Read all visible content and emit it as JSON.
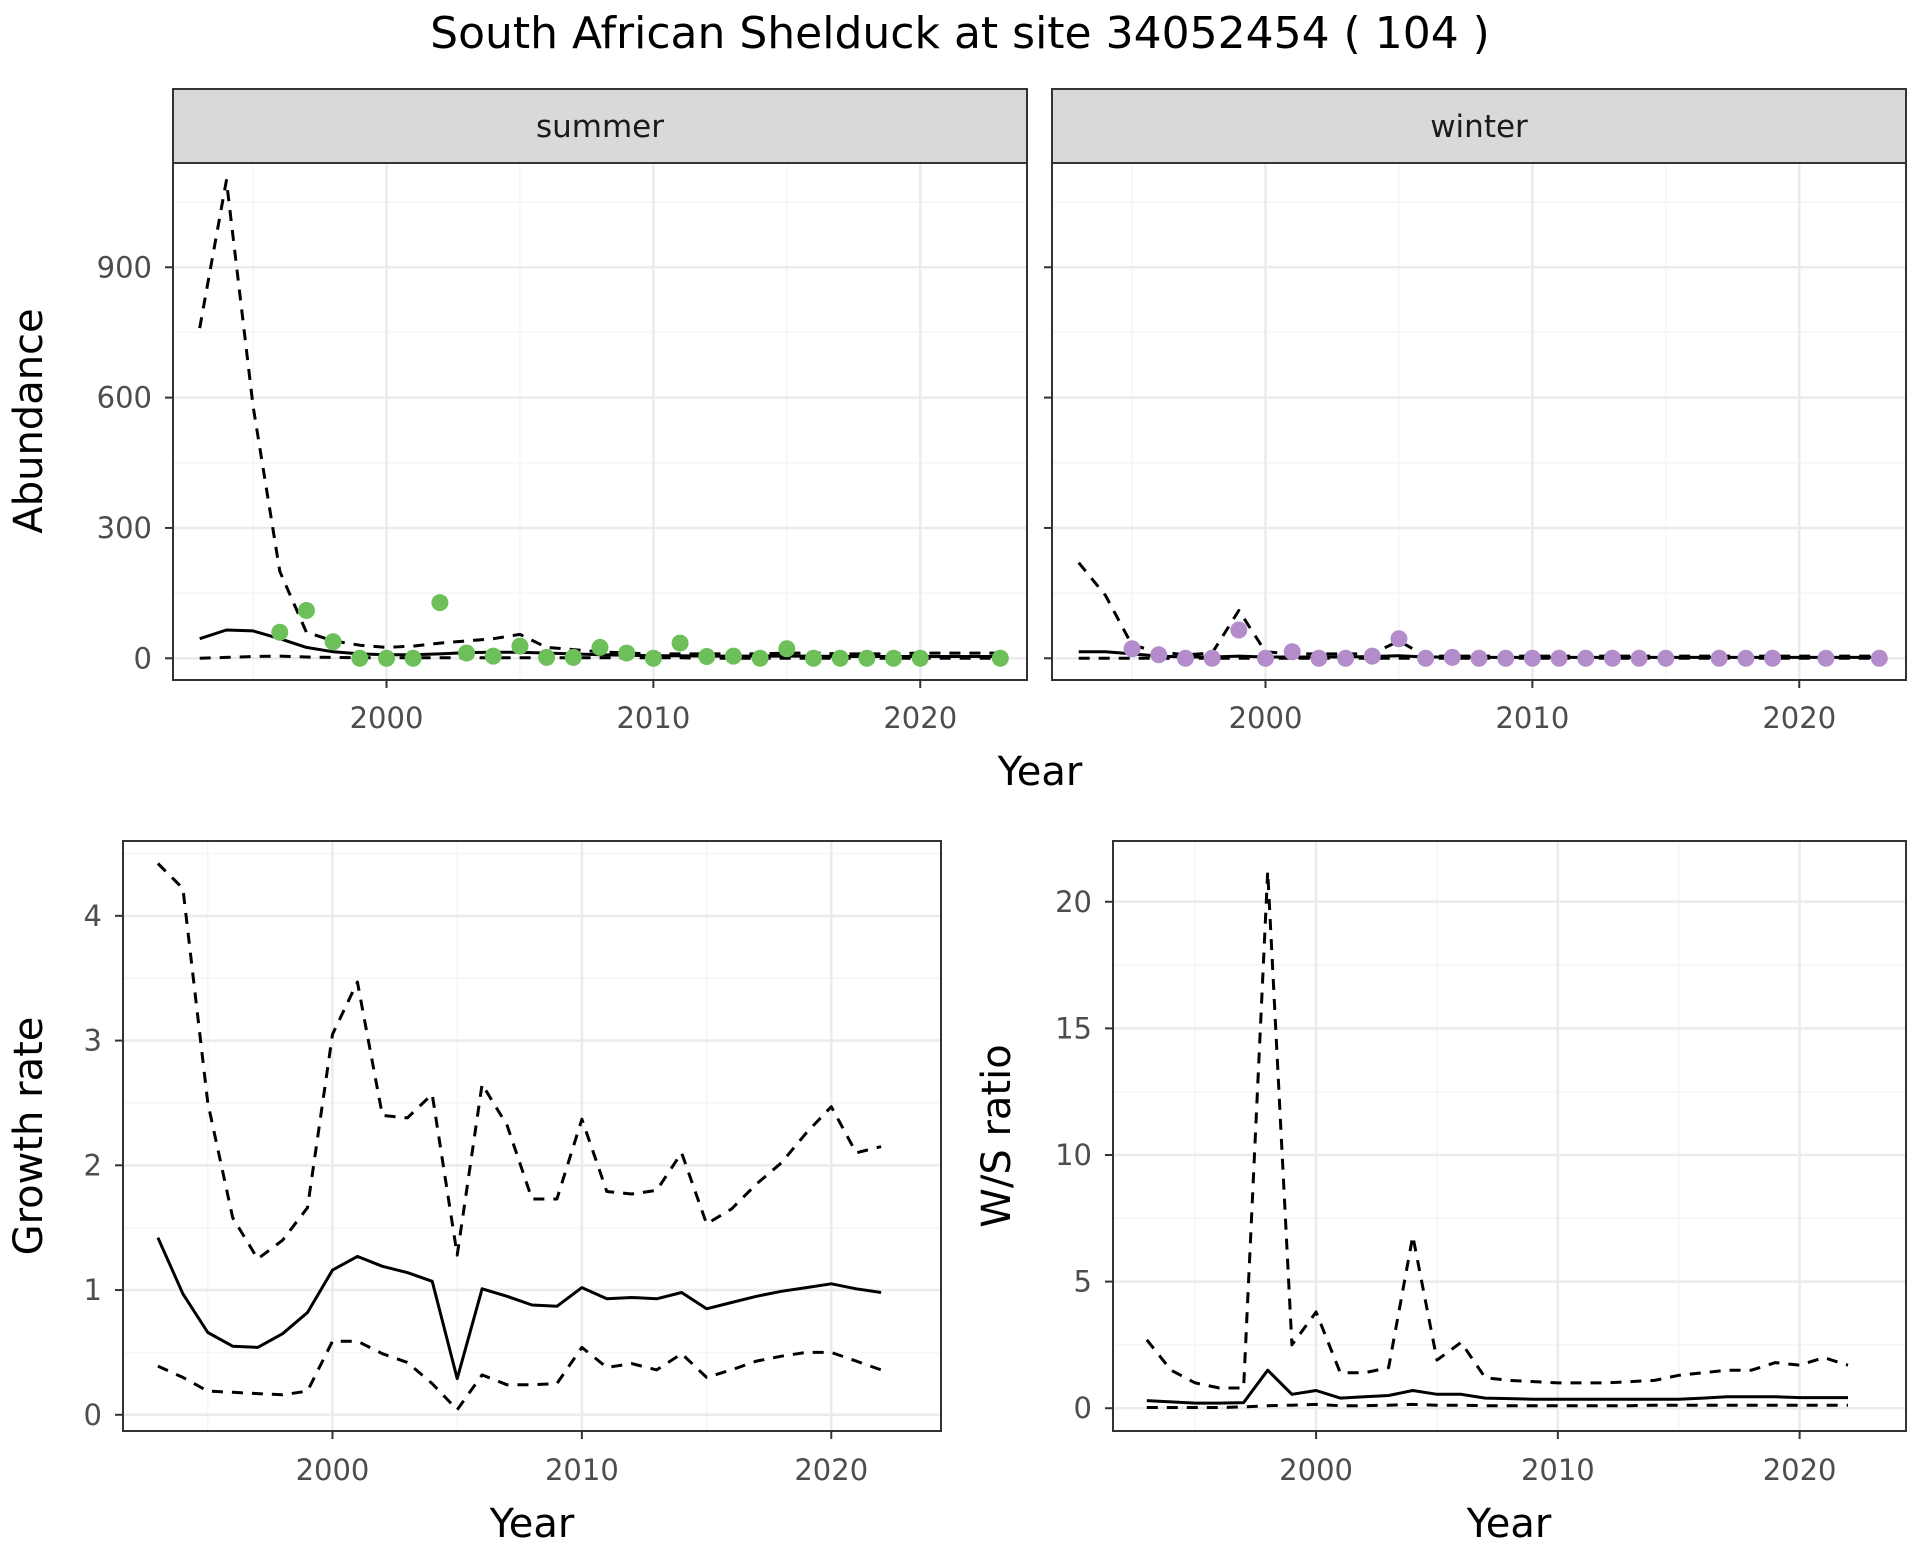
{
  "title": "South African Shelduck at site 34052454 ( 104 )",
  "colors": {
    "summer_points": "#6DBF5A",
    "winter_points": "#B28CCB",
    "grid_major": "#EBEBEB",
    "grid_minor": "#F5F5F5",
    "panel_border": "#333333",
    "strip_fill": "#D9D9D9",
    "line": "#000000"
  },
  "chart_data": [
    {
      "type": "line",
      "title": "",
      "strip": "summer",
      "xlabel": "Year",
      "ylabel": "Abundance",
      "xlim": [
        1992,
        2024
      ],
      "ylim": [
        -50,
        1140
      ],
      "xticks": [
        2000,
        2010,
        2020
      ],
      "yticks": [
        0,
        300,
        600,
        900
      ],
      "grid": true,
      "series": [
        {
          "style": "solid",
          "x": [
            1993,
            1994,
            1995,
            1996,
            1997,
            1998,
            1999,
            2000,
            2001,
            2002,
            2003,
            2004,
            2005,
            2006,
            2007,
            2008,
            2009,
            2010,
            2011,
            2012,
            2013,
            2014,
            2015,
            2016,
            2017,
            2018,
            2019,
            2020,
            2021,
            2022,
            2023
          ],
          "values": [
            45,
            65,
            63,
            45,
            25,
            15,
            10,
            8,
            8,
            10,
            13,
            14,
            14,
            12,
            10,
            8,
            7,
            6,
            6,
            5,
            5,
            5,
            5,
            5,
            4,
            4,
            4,
            4,
            4,
            4,
            4
          ]
        },
        {
          "style": "dashed",
          "x": [
            1993,
            1994,
            1995,
            1996,
            1997,
            1998,
            1999,
            2000,
            2001,
            2002,
            2003,
            2004,
            2005,
            2006,
            2007,
            2008,
            2009,
            2010,
            2011,
            2012,
            2013,
            2014,
            2015,
            2016,
            2017,
            2018,
            2019,
            2020,
            2021,
            2022,
            2023
          ],
          "values": [
            760,
            1100,
            580,
            200,
            60,
            40,
            30,
            25,
            28,
            35,
            40,
            45,
            55,
            25,
            20,
            15,
            12,
            10,
            10,
            10,
            10,
            10,
            12,
            12,
            10,
            10,
            10,
            12,
            12,
            12,
            12
          ]
        },
        {
          "style": "dashed",
          "x": [
            1993,
            1994,
            1995,
            1996,
            1997,
            1998,
            1999,
            2000,
            2001,
            2002,
            2003,
            2004,
            2005,
            2006,
            2007,
            2008,
            2009,
            2010,
            2011,
            2012,
            2013,
            2014,
            2015,
            2016,
            2017,
            2018,
            2019,
            2020,
            2021,
            2022,
            2023
          ],
          "values": [
            0,
            2,
            4,
            5,
            3,
            2,
            1,
            1,
            1,
            1,
            1,
            1,
            1,
            1,
            1,
            1,
            1,
            1,
            1,
            0,
            0,
            0,
            0,
            0,
            0,
            0,
            0,
            0,
            0,
            0,
            0
          ]
        },
        {
          "style": "points",
          "color": "#6DBF5A",
          "x": [
            1996,
            1997,
            1998,
            1999,
            2000,
            2001,
            2002,
            2003,
            2004,
            2005,
            2006,
            2007,
            2008,
            2009,
            2010,
            2011,
            2012,
            2013,
            2014,
            2015,
            2016,
            2017,
            2018,
            2019,
            2020,
            2023
          ],
          "values": [
            60,
            110,
            38,
            0,
            0,
            0,
            128,
            12,
            5,
            28,
            2,
            2,
            25,
            12,
            0,
            35,
            4,
            5,
            0,
            22,
            0,
            0,
            0,
            0,
            0,
            0
          ]
        }
      ]
    },
    {
      "type": "line",
      "title": "",
      "strip": "winter",
      "xlabel": "Year",
      "ylabel": "",
      "xlim": [
        1992,
        2024
      ],
      "ylim": [
        -50,
        1140
      ],
      "xticks": [
        2000,
        2010,
        2020
      ],
      "yticks": [
        0,
        300,
        600,
        900
      ],
      "grid": true,
      "series": [
        {
          "style": "solid",
          "x": [
            1993,
            1994,
            1995,
            1996,
            1997,
            1998,
            1999,
            2000,
            2001,
            2002,
            2003,
            2004,
            2005,
            2006,
            2007,
            2008,
            2009,
            2010,
            2011,
            2012,
            2013,
            2014,
            2015,
            2016,
            2017,
            2018,
            2019,
            2020,
            2021,
            2022,
            2023
          ],
          "values": [
            15,
            15,
            10,
            5,
            3,
            3,
            5,
            3,
            3,
            3,
            3,
            4,
            6,
            3,
            3,
            2,
            2,
            2,
            2,
            2,
            2,
            2,
            2,
            2,
            2,
            2,
            2,
            2,
            2,
            2,
            2
          ]
        },
        {
          "style": "dashed",
          "x": [
            1993,
            1994,
            1995,
            1996,
            1997,
            1998,
            1999,
            2000,
            2001,
            2002,
            2003,
            2004,
            2005,
            2006,
            2007,
            2008,
            2009,
            2010,
            2011,
            2012,
            2013,
            2014,
            2015,
            2016,
            2017,
            2018,
            2019,
            2020,
            2021,
            2022,
            2023
          ],
          "values": [
            220,
            145,
            30,
            15,
            8,
            12,
            110,
            15,
            10,
            10,
            10,
            10,
            40,
            5,
            5,
            5,
            5,
            5,
            5,
            5,
            5,
            5,
            5,
            5,
            5,
            5,
            5,
            5,
            5,
            5,
            5
          ]
        },
        {
          "style": "dashed",
          "x": [
            1993,
            1994,
            1995,
            1996,
            1997,
            1998,
            1999,
            2000,
            2001,
            2002,
            2003,
            2004,
            2005,
            2006,
            2007,
            2008,
            2009,
            2010,
            2011,
            2012,
            2013,
            2014,
            2015,
            2016,
            2017,
            2018,
            2019,
            2020,
            2021,
            2022,
            2023
          ],
          "values": [
            0,
            0,
            0,
            0,
            0,
            0,
            0,
            0,
            0,
            0,
            0,
            0,
            0,
            0,
            0,
            0,
            0,
            0,
            0,
            0,
            0,
            0,
            0,
            0,
            0,
            0,
            0,
            0,
            0,
            0,
            0
          ]
        },
        {
          "style": "points",
          "color": "#B28CCB",
          "x": [
            1995,
            1996,
            1997,
            1998,
            1999,
            2000,
            2001,
            2002,
            2003,
            2004,
            2005,
            2006,
            2007,
            2008,
            2009,
            2010,
            2011,
            2012,
            2013,
            2014,
            2015,
            2017,
            2018,
            2019,
            2021,
            2023
          ],
          "values": [
            22,
            8,
            0,
            0,
            65,
            0,
            15,
            0,
            0,
            5,
            45,
            0,
            2,
            0,
            0,
            0,
            0,
            0,
            0,
            0,
            0,
            0,
            0,
            0,
            0,
            0
          ]
        }
      ]
    },
    {
      "type": "line",
      "title": "",
      "xlabel": "Year",
      "ylabel": "Growth rate",
      "xlim": [
        1991.6,
        2024.4
      ],
      "ylim": [
        -0.13,
        4.6
      ],
      "xticks": [
        2000,
        2010,
        2020
      ],
      "yticks": [
        0,
        1,
        2,
        3,
        4
      ],
      "grid": true,
      "series": [
        {
          "style": "solid",
          "x": [
            1993,
            1994,
            1995,
            1996,
            1997,
            1998,
            1999,
            2000,
            2001,
            2002,
            2003,
            2004,
            2005,
            2006,
            2007,
            2008,
            2009,
            2010,
            2011,
            2012,
            2013,
            2014,
            2015,
            2016,
            2017,
            2018,
            2019,
            2020,
            2021,
            2022
          ],
          "values": [
            1.42,
            0.97,
            0.66,
            0.55,
            0.54,
            0.65,
            0.82,
            1.16,
            1.27,
            1.19,
            1.14,
            1.07,
            0.29,
            1.01,
            0.95,
            0.88,
            0.87,
            1.02,
            0.93,
            0.94,
            0.93,
            0.98,
            0.85,
            0.9,
            0.95,
            0.99,
            1.02,
            1.05,
            1.01,
            0.98
          ]
        },
        {
          "style": "dashed",
          "x": [
            1993,
            1994,
            1995,
            1996,
            1997,
            1998,
            1999,
            2000,
            2001,
            2002,
            2003,
            2004,
            2005,
            2006,
            2007,
            2008,
            2009,
            2010,
            2011,
            2012,
            2013,
            2014,
            2015,
            2016,
            2017,
            2018,
            2019,
            2020,
            2021,
            2022
          ],
          "values": [
            4.42,
            4.22,
            2.5,
            1.58,
            1.25,
            1.4,
            1.66,
            3.05,
            3.47,
            2.4,
            2.38,
            2.57,
            1.28,
            2.65,
            2.32,
            1.73,
            1.73,
            2.37,
            1.79,
            1.77,
            1.8,
            2.1,
            1.53,
            1.65,
            1.85,
            2.02,
            2.26,
            2.47,
            2.1,
            2.15
          ]
        },
        {
          "style": "dashed",
          "x": [
            1993,
            1994,
            1995,
            1996,
            1997,
            1998,
            1999,
            2000,
            2001,
            2002,
            2003,
            2004,
            2005,
            2006,
            2007,
            2008,
            2009,
            2010,
            2011,
            2012,
            2013,
            2014,
            2015,
            2016,
            2017,
            2018,
            2019,
            2020,
            2021,
            2022
          ],
          "values": [
            0.39,
            0.3,
            0.19,
            0.18,
            0.17,
            0.16,
            0.19,
            0.59,
            0.59,
            0.49,
            0.42,
            0.25,
            0.04,
            0.32,
            0.24,
            0.24,
            0.25,
            0.54,
            0.38,
            0.41,
            0.36,
            0.49,
            0.3,
            0.36,
            0.43,
            0.47,
            0.5,
            0.5,
            0.43,
            0.36
          ]
        }
      ]
    },
    {
      "type": "line",
      "title": "",
      "xlabel": "Year",
      "ylabel": "W/S ratio",
      "xlim": [
        1991.6,
        2024.4
      ],
      "ylim": [
        -0.9,
        22.4
      ],
      "xticks": [
        2000,
        2010,
        2020
      ],
      "yticks": [
        0,
        5,
        10,
        15,
        20
      ],
      "grid": true,
      "series": [
        {
          "style": "solid",
          "x": [
            1993,
            1994,
            1995,
            1996,
            1997,
            1998,
            1999,
            2000,
            2001,
            2002,
            2003,
            2004,
            2005,
            2006,
            2007,
            2008,
            2009,
            2010,
            2011,
            2012,
            2013,
            2014,
            2015,
            2016,
            2017,
            2018,
            2019,
            2020,
            2021,
            2022
          ],
          "values": [
            0.3,
            0.25,
            0.2,
            0.2,
            0.22,
            1.5,
            0.55,
            0.7,
            0.4,
            0.45,
            0.5,
            0.7,
            0.55,
            0.55,
            0.4,
            0.38,
            0.35,
            0.35,
            0.35,
            0.35,
            0.35,
            0.35,
            0.35,
            0.4,
            0.45,
            0.45,
            0.45,
            0.42,
            0.42,
            0.42
          ]
        },
        {
          "style": "dashed",
          "x": [
            1993,
            1994,
            1995,
            1996,
            1997,
            1998,
            1999,
            2000,
            2001,
            2002,
            2003,
            2004,
            2005,
            2006,
            2007,
            2008,
            2009,
            2010,
            2011,
            2012,
            2013,
            2014,
            2015,
            2016,
            2017,
            2018,
            2019,
            2020,
            2021,
            2022
          ],
          "values": [
            2.7,
            1.5,
            1.0,
            0.8,
            0.8,
            21.2,
            2.5,
            3.8,
            1.4,
            1.4,
            1.6,
            6.8,
            1.9,
            2.6,
            1.2,
            1.1,
            1.05,
            1.0,
            1.0,
            1.0,
            1.05,
            1.1,
            1.3,
            1.4,
            1.5,
            1.5,
            1.8,
            1.7,
            2.0,
            1.7
          ]
        },
        {
          "style": "dashed",
          "x": [
            1993,
            1994,
            1995,
            1996,
            1997,
            1998,
            1999,
            2000,
            2001,
            2002,
            2003,
            2004,
            2005,
            2006,
            2007,
            2008,
            2009,
            2010,
            2011,
            2012,
            2013,
            2014,
            2015,
            2016,
            2017,
            2018,
            2019,
            2020,
            2021,
            2022
          ],
          "values": [
            0.03,
            0.03,
            0.03,
            0.03,
            0.05,
            0.1,
            0.12,
            0.15,
            0.1,
            0.1,
            0.12,
            0.15,
            0.12,
            0.12,
            0.1,
            0.1,
            0.1,
            0.1,
            0.1,
            0.1,
            0.1,
            0.12,
            0.12,
            0.12,
            0.12,
            0.12,
            0.12,
            0.12,
            0.12,
            0.12
          ]
        }
      ]
    }
  ]
}
